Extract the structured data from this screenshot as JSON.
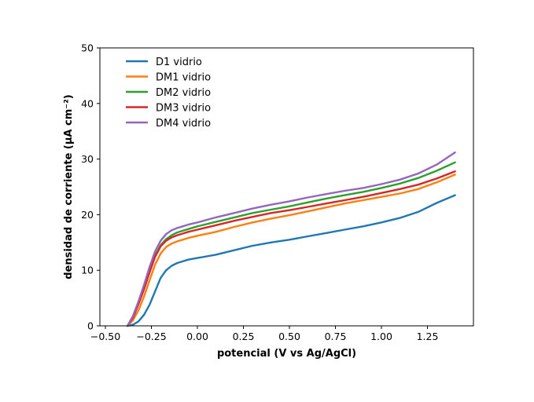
{
  "chart_data": {
    "type": "line",
    "xlabel": "potencial (V vs Ag/AgCl)",
    "ylabel": "densidad de corriente (µA cm⁻²)",
    "xlim": [
      -0.53,
      1.5
    ],
    "ylim": [
      0,
      50
    ],
    "xticks": [
      -0.5,
      -0.25,
      0.0,
      0.25,
      0.5,
      0.75,
      1.0,
      1.25
    ],
    "xtick_labels": [
      "−0.50",
      "−0.25",
      "0.00",
      "0.25",
      "0.50",
      "0.75",
      "1.00",
      "1.25"
    ],
    "yticks": [
      0,
      10,
      20,
      30,
      40,
      50
    ],
    "ytick_labels": [
      "0",
      "10",
      "20",
      "30",
      "40",
      "50"
    ],
    "grid": false,
    "legend_position": "top-left",
    "x": [
      -0.38,
      -0.35,
      -0.32,
      -0.29,
      -0.26,
      -0.23,
      -0.2,
      -0.17,
      -0.14,
      -0.11,
      -0.08,
      -0.05,
      0.0,
      0.1,
      0.2,
      0.3,
      0.4,
      0.5,
      0.6,
      0.7,
      0.8,
      0.9,
      1.0,
      1.1,
      1.2,
      1.3,
      1.4
    ],
    "series": [
      {
        "name": "D1 vidrio",
        "color": "#1f77b4",
        "values": [
          0.0,
          0.2,
          0.8,
          2.0,
          3.8,
          6.2,
          8.6,
          10.0,
          10.8,
          11.3,
          11.6,
          11.9,
          12.2,
          12.8,
          13.6,
          14.4,
          15.0,
          15.5,
          16.1,
          16.7,
          17.3,
          17.9,
          18.6,
          19.4,
          20.5,
          22.1,
          23.5
        ]
      },
      {
        "name": "DM1 vidrio",
        "color": "#ff7f0e",
        "values": [
          0.0,
          1.0,
          2.8,
          5.3,
          8.2,
          11.0,
          13.0,
          14.2,
          14.8,
          15.2,
          15.5,
          15.8,
          16.2,
          16.9,
          17.8,
          18.6,
          19.3,
          19.9,
          20.6,
          21.3,
          22.0,
          22.6,
          23.2,
          23.8,
          24.6,
          25.8,
          27.2
        ]
      },
      {
        "name": "DM2 vidrio",
        "color": "#2ca02c",
        "values": [
          0.0,
          1.6,
          4.0,
          6.8,
          9.8,
          12.6,
          14.5,
          15.6,
          16.3,
          16.8,
          17.1,
          17.4,
          17.9,
          18.7,
          19.5,
          20.3,
          20.9,
          21.5,
          22.2,
          22.9,
          23.5,
          24.1,
          24.8,
          25.6,
          26.6,
          27.9,
          29.4
        ]
      },
      {
        "name": "DM3 vidrio",
        "color": "#d62728",
        "values": [
          0.0,
          1.5,
          3.9,
          6.6,
          9.6,
          12.4,
          14.3,
          15.3,
          15.9,
          16.3,
          16.6,
          16.9,
          17.3,
          18.1,
          18.9,
          19.6,
          20.3,
          20.8,
          21.4,
          22.0,
          22.6,
          23.2,
          23.9,
          24.6,
          25.4,
          26.5,
          27.8
        ]
      },
      {
        "name": "DM4 vidrio",
        "color": "#9467bd",
        "values": [
          0.0,
          1.8,
          4.4,
          7.4,
          10.6,
          13.4,
          15.3,
          16.5,
          17.2,
          17.6,
          17.9,
          18.2,
          18.6,
          19.5,
          20.3,
          21.1,
          21.8,
          22.4,
          23.1,
          23.7,
          24.3,
          24.8,
          25.5,
          26.3,
          27.4,
          29.0,
          31.2
        ]
      }
    ]
  }
}
